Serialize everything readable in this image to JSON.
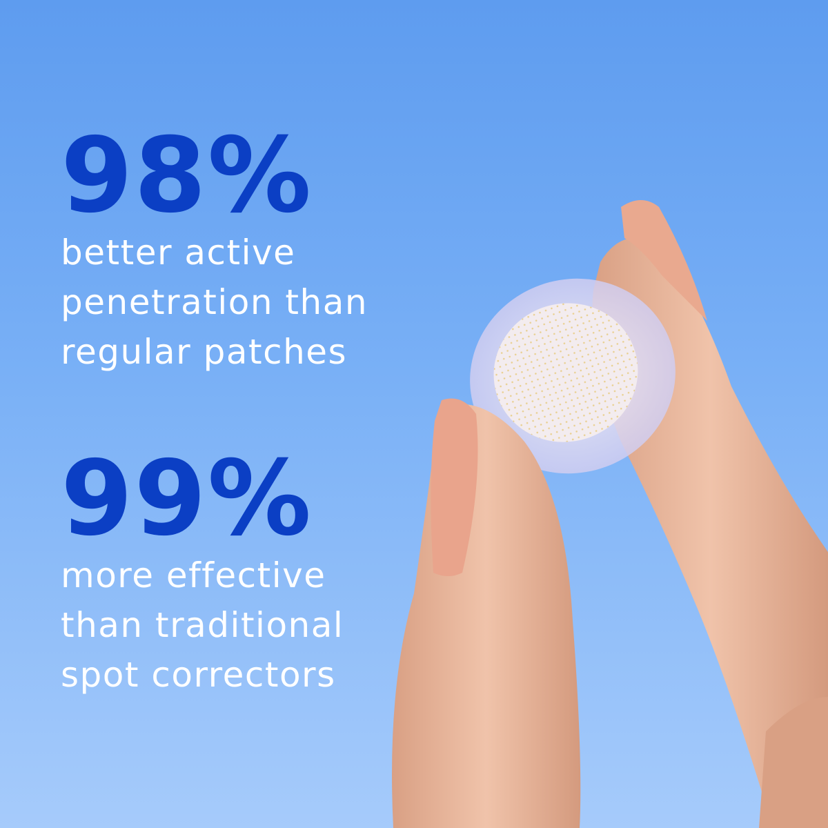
{
  "stats": [
    {
      "value": "98%",
      "lines": [
        "better active",
        "penetration than",
        "regular patches"
      ]
    },
    {
      "value": "99%",
      "lines": [
        "more effective",
        "than traditional",
        "spot correctors"
      ]
    }
  ],
  "colors": {
    "accent": "#0b3fc4",
    "text": "#ffffff",
    "sky_top": "#5e9cef",
    "sky_bottom": "#a6cbfb",
    "skin": "#e8b398"
  }
}
